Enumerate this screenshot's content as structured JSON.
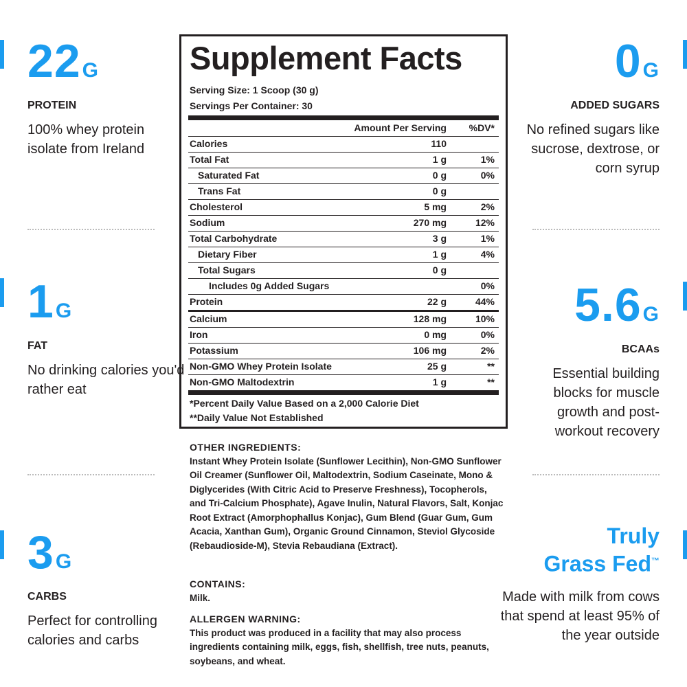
{
  "left_features": [
    {
      "big": "22",
      "unit": "G",
      "label": "PROTEIN",
      "description": "100% whey protein isolate from Ireland"
    },
    {
      "big": "1",
      "unit": "G",
      "label": "FAT",
      "description": "No drinking calories you'd rather eat"
    },
    {
      "big": "3",
      "unit": "G",
      "label": "CARBS",
      "description": "Perfect for controlling calories and carbs"
    }
  ],
  "right_features": [
    {
      "big": "0",
      "unit": "G",
      "label": "ADDED SUGARS",
      "description": "No refined sugars like sucrose, dextrose, or corn syrup"
    },
    {
      "big": "5.6",
      "unit": "G",
      "label": "BCAAs",
      "description": "Essential building blocks for muscle growth and post-workout recovery"
    }
  ],
  "grass_fed": {
    "line1": "Truly",
    "line2": "Grass Fed",
    "mark": "™",
    "description": "Made with milk from cows that spend at least 95% of the year outside"
  },
  "supplement_facts": {
    "title": "Supplement Facts",
    "serving_size": "Serving Size: 1 Scoop (30 g)",
    "servings_per_container": "Servings Per Container: 30",
    "header": [
      "Amount Per Serving",
      "%DV*"
    ],
    "rows": [
      [
        "Calories",
        "110",
        null
      ],
      [
        "Total Fat",
        "1 g",
        "1%"
      ],
      [
        "Saturated Fat",
        "0 g",
        "0%"
      ],
      [
        "Trans Fat",
        "0 g",
        null
      ],
      [
        "Cholesterol",
        "5 mg",
        "2%"
      ],
      [
        "Sodium",
        "270 mg",
        "12%"
      ],
      [
        "Total Carbohydrate",
        "3 g",
        "1%"
      ],
      [
        "Dietary Fiber",
        "1 g",
        "4%"
      ],
      [
        "Total Sugars",
        "0 g",
        null
      ],
      [
        "Includes 0g Added Sugars",
        null,
        "0%"
      ],
      [
        "Protein",
        "22 g",
        "44%"
      ],
      [
        "Calcium",
        "128 mg",
        "10%"
      ],
      [
        "Iron",
        "0 mg",
        "0%"
      ],
      [
        "Potassium",
        "106 mg",
        "2%"
      ],
      [
        "Non-GMO Whey Protein Isolate",
        "25 g",
        "**"
      ],
      [
        "Non-GMO Maltodextrin",
        "1 g",
        "**"
      ]
    ],
    "footnotes": [
      "*Percent Daily Value Based on a 2,000 Calorie Diet",
      "**Daily Value Not Established"
    ]
  },
  "other_ingredients": {
    "heading": "OTHER INGREDIENTS:",
    "text": "Instant Whey Protein Isolate (Sunflower Lecithin), Non-GMO Sunflower Oil Creamer (Sunflower Oil, Maltodextrin, Sodium Caseinate, Mono & Diglycerides (With Citric Acid to Preserve Freshness), Tocopherols, and Tri-Calcium Phosphate), Agave Inulin, Natural Flavors, Salt, Konjac Root Extract (Amorphophallus Konjac), Gum Blend (Guar Gum, Gum Acacia, Xanthan Gum), Organic Ground Cinnamon, Steviol Glycoside (Rebaudioside-M), Stevia Rebaudiana (Extract)."
  },
  "contains": {
    "heading": "CONTAINS:",
    "text": "Milk."
  },
  "allergen_warning": {
    "heading": "ALLERGEN WARNING:",
    "text": "This product was produced in a facility that may also process ingredients containing milk, eggs, fish, shellfish, tree nuts, peanuts, soybeans, and wheat."
  }
}
